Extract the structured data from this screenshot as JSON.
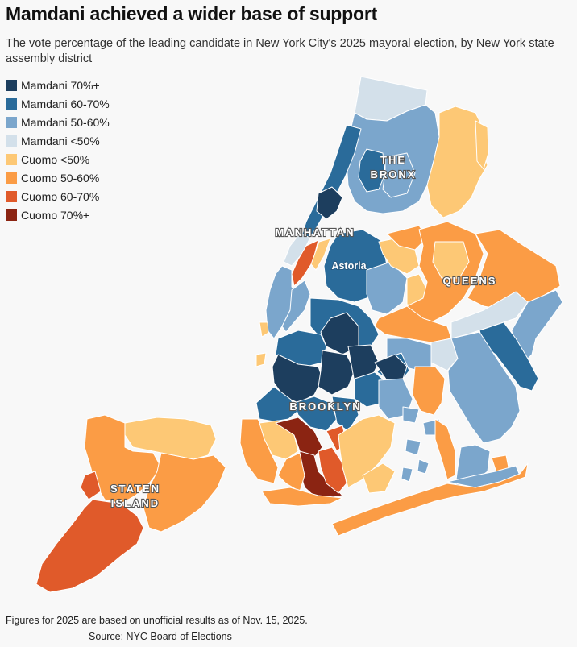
{
  "header": {
    "title": "Mamdani achieved a wider base of support",
    "subtitle": "The vote percentage of the leading candidate in New York City's 2025 mayoral election, by New York state assembly district"
  },
  "legend": {
    "items": [
      {
        "label": "Mamdani 70%+",
        "color": "#1d3e5e"
      },
      {
        "label": "Mamdani 60-70%",
        "color": "#2a6b9a"
      },
      {
        "label": "Mamdani 50-60%",
        "color": "#7ba6cc"
      },
      {
        "label": "Mamdani <50%",
        "color": "#d3e0ea"
      },
      {
        "label": "Cuomo <50%",
        "color": "#fdc875"
      },
      {
        "label": "Cuomo 50-60%",
        "color": "#fb9c45"
      },
      {
        "label": "Cuomo 60-70%",
        "color": "#e05a2a"
      },
      {
        "label": "Cuomo 70%+",
        "color": "#8b2412"
      }
    ]
  },
  "map": {
    "borough_labels": {
      "bronx_line1": "THE",
      "bronx_line2": "BRONX",
      "manhattan": "MANHATTAN",
      "queens": "QUEENS",
      "brooklyn": "BROOKLYN",
      "staten_line1": "STATEN",
      "staten_line2": "ISLAND"
    },
    "place_labels": {
      "astoria": "Astoria"
    }
  },
  "footer": {
    "note": "Figures for 2025 are based on unofficial results as of Nov. 15, 2025.",
    "source": "Source: NYC Board of Elections"
  }
}
